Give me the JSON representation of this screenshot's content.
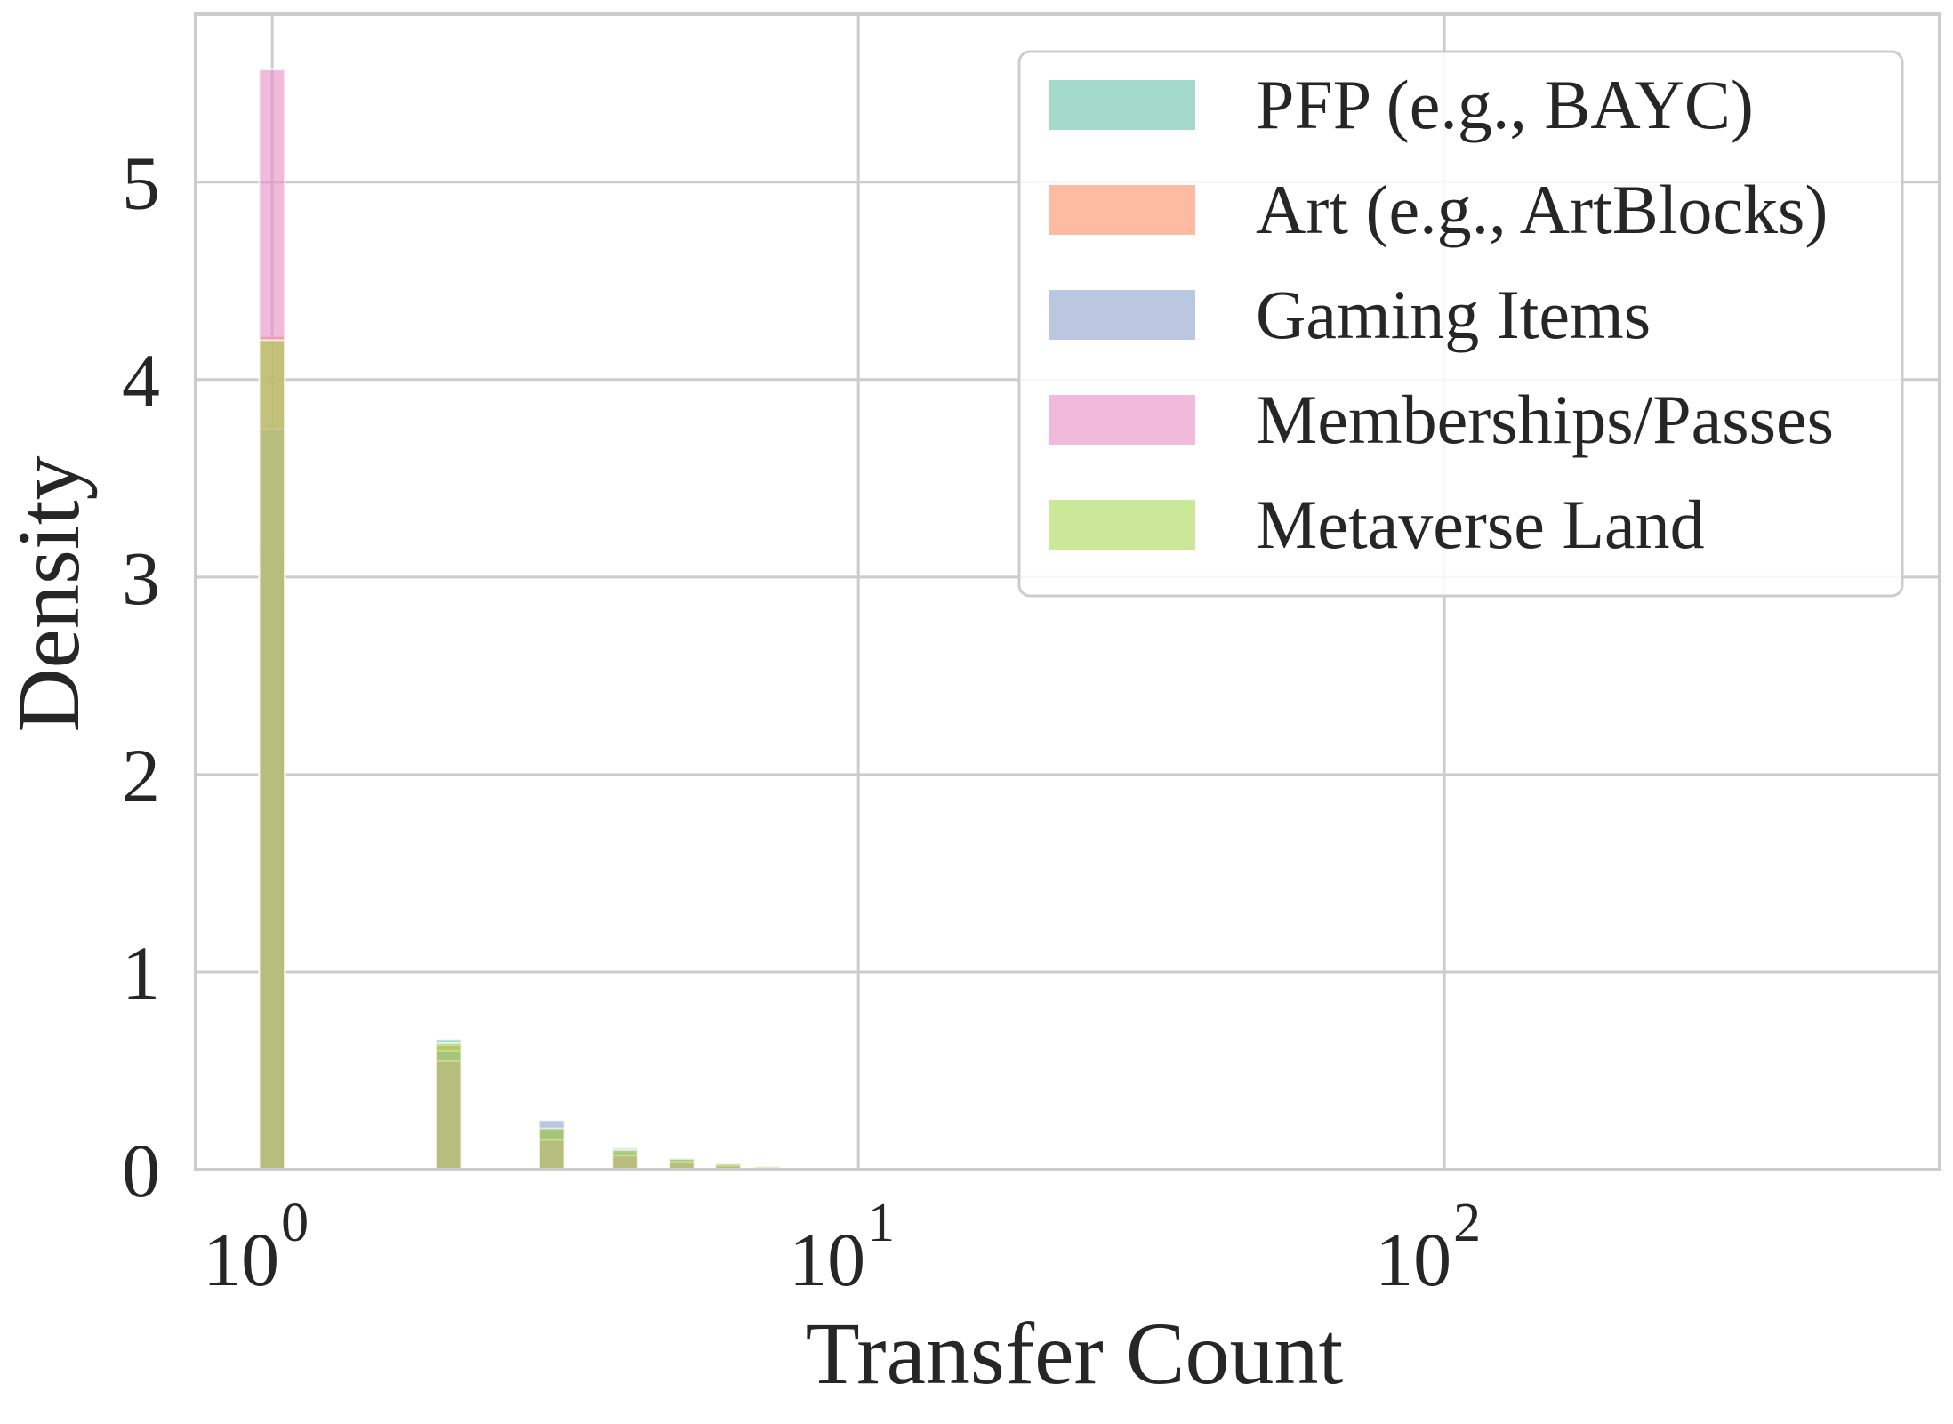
{
  "chart_data": {
    "type": "histogram",
    "xscale": "log",
    "xlim": [
      0.74,
      700
    ],
    "ylim": [
      0,
      5.85
    ],
    "xlabel": "Transfer Count",
    "ylabel": "Density",
    "grid": true,
    "legend_position": "top-right",
    "x_ticks": [
      {
        "value": 1,
        "base": "10",
        "exp": "0"
      },
      {
        "value": 10,
        "base": "10",
        "exp": "1"
      },
      {
        "value": 100,
        "base": "10",
        "exp": "2"
      }
    ],
    "y_ticks": [
      {
        "value": 0,
        "label": "0"
      },
      {
        "value": 1,
        "label": "1"
      },
      {
        "value": 2,
        "label": "2"
      },
      {
        "value": 3,
        "label": "3"
      },
      {
        "value": 4,
        "label": "4"
      },
      {
        "value": 5,
        "label": "5"
      }
    ],
    "bins": [
      [
        0.95,
        1.05
      ],
      [
        1.9,
        2.1
      ],
      [
        2.85,
        3.15
      ],
      [
        3.8,
        4.2
      ],
      [
        4.75,
        5.25
      ],
      [
        5.7,
        6.3
      ],
      [
        6.65,
        7.35
      ],
      [
        7.6,
        8.4
      ]
    ],
    "series": [
      {
        "name": "PFP (e.g., BAYC)",
        "color": "#66c2a5",
        "values": [
          3.15,
          0.66,
          0.22,
          0.1,
          0.055,
          0.03,
          0.015,
          0.008
        ]
      },
      {
        "name": "Art (e.g., ArtBlocks)",
        "color": "#fc8d62",
        "values": [
          4.22,
          0.63,
          0.2,
          0.09,
          0.05,
          0.025,
          0.012,
          0.006
        ]
      },
      {
        "name": "Gaming Items",
        "color": "#8da0cb",
        "values": [
          3.75,
          0.6,
          0.25,
          0.11,
          0.06,
          0.03,
          0.015,
          0.008
        ]
      },
      {
        "name": "Memberships/Passes",
        "color": "#e78ac3",
        "values": [
          5.57,
          0.55,
          0.15,
          0.07,
          0.04,
          0.02,
          0.01,
          0.005
        ]
      },
      {
        "name": "Metaverse Land",
        "color": "#a6d854",
        "values": [
          4.2,
          0.64,
          0.21,
          0.1,
          0.055,
          0.03,
          0.015,
          0.008
        ]
      }
    ]
  }
}
